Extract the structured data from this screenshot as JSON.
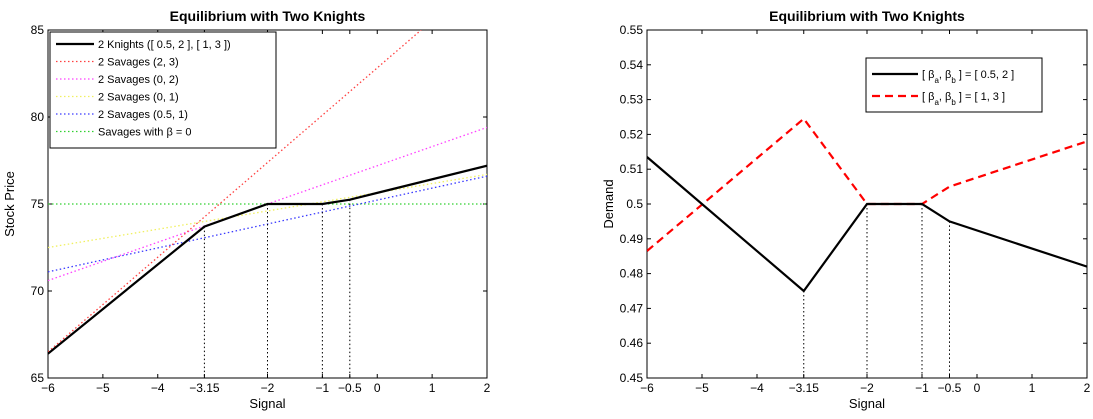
{
  "chart_data": [
    {
      "type": "line",
      "title": "Equilibrium with Two Knights",
      "xlabel": "Signal",
      "ylabel": "Stock Price",
      "xlim": [
        -6,
        2
      ],
      "ylim": [
        65,
        85
      ],
      "xticks": [
        -6,
        -5,
        -4,
        -3.15,
        -2,
        -1,
        -0.5,
        0,
        1,
        2
      ],
      "xtick_labels": [
        "−6",
        "−5",
        "−4",
        "−3.15",
        "−2",
        "−1",
        "−0.5",
        "0",
        "1",
        "2"
      ],
      "yticks": [
        65,
        70,
        75,
        80,
        85
      ],
      "ytick_labels": [
        "65",
        "70",
        "75",
        "80",
        "85"
      ],
      "grid": false,
      "legend_position": "top-left",
      "vlines": [
        -3.15,
        -2,
        -1,
        -0.5
      ],
      "series": [
        {
          "name": "2 Knights ([ 0.5, 2 ], [ 1, 3 ])",
          "color": "#000000",
          "style": "solid",
          "x": [
            -6,
            -3.15,
            -2,
            -1,
            -0.5,
            2
          ],
          "y": [
            66.4,
            73.7,
            75.0,
            75.0,
            75.25,
            77.2
          ]
        },
        {
          "name": "2 Savages (2, 3)",
          "color": "#ff4040",
          "style": "dotted",
          "x": [
            -6,
            0.8
          ],
          "y": [
            66.5,
            85.0
          ]
        },
        {
          "name": "2 Savages (0, 2)",
          "color": "#ff40ff",
          "style": "dotted",
          "x": [
            -6,
            2
          ],
          "y": [
            70.6,
            79.4
          ]
        },
        {
          "name": "2 Savages (0, 1)",
          "color": "#f0f060",
          "style": "dotted",
          "x": [
            -6,
            2
          ],
          "y": [
            72.5,
            76.7
          ]
        },
        {
          "name": "2 Savages (0.5, 1)",
          "color": "#3a3aff",
          "style": "dotted",
          "x": [
            -6,
            2
          ],
          "y": [
            71.1,
            76.6
          ]
        },
        {
          "name": "Savages with β = 0",
          "color": "#30d030",
          "style": "dotted",
          "x": [
            -6,
            2
          ],
          "y": [
            75.0,
            75.0
          ]
        }
      ]
    },
    {
      "type": "line",
      "title": "Equilibrium with Two Knights",
      "xlabel": "Signal",
      "ylabel": "Demand",
      "xlim": [
        -6,
        2
      ],
      "ylim": [
        0.45,
        0.55
      ],
      "xticks": [
        -6,
        -5,
        -4,
        -3.15,
        -2,
        -1,
        -0.5,
        0,
        1,
        2
      ],
      "xtick_labels": [
        "−6",
        "−5",
        "−4",
        "−3.15",
        "−2",
        "−1",
        "−0.5",
        "0",
        "1",
        "2"
      ],
      "yticks": [
        0.45,
        0.46,
        0.47,
        0.48,
        0.49,
        0.5,
        0.51,
        0.52,
        0.53,
        0.54,
        0.55
      ],
      "ytick_labels": [
        "0.45",
        "0.46",
        "0.47",
        "0.48",
        "0.49",
        "0.5",
        "0.51",
        "0.52",
        "0.53",
        "0.54",
        "0.55"
      ],
      "grid": false,
      "legend_position": "top-right",
      "vlines": [
        -3.15,
        -2,
        -1,
        -0.5
      ],
      "series": [
        {
          "name": "[ βa, βb ] = [ 0.5, 2 ]",
          "color": "#000000",
          "style": "solid",
          "x": [
            -6,
            -3.15,
            -2,
            -1,
            -0.5,
            2
          ],
          "y": [
            0.5135,
            0.475,
            0.5,
            0.5,
            0.495,
            0.482
          ]
        },
        {
          "name": "[ βa, βb ] = [ 1, 3 ]",
          "color": "#ff0000",
          "style": "dashed",
          "x": [
            -6,
            -3.15,
            -2,
            -1,
            -0.5,
            2
          ],
          "y": [
            0.4865,
            0.5245,
            0.5,
            0.5,
            0.505,
            0.518
          ]
        }
      ]
    }
  ]
}
